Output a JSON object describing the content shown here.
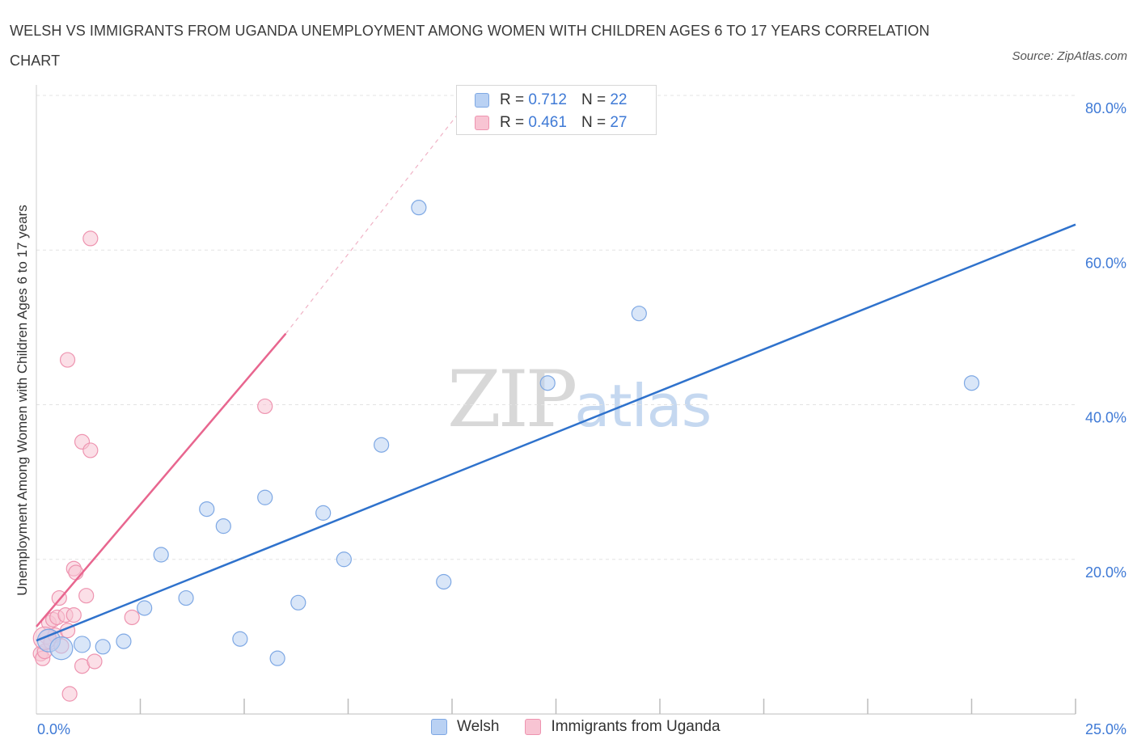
{
  "header": {
    "title": "WELSH VS IMMIGRANTS FROM UGANDA UNEMPLOYMENT AMONG WOMEN WITH CHILDREN AGES 6 TO 17 YEARS CORRELATION CHART",
    "source": "Source: ZipAtlas.com"
  },
  "watermark": {
    "zip": "ZIP",
    "atlas": "atlas"
  },
  "legend": {
    "welsh": {
      "r_label": "R =",
      "r_value": "0.712",
      "n_label": "N =",
      "n_value": "22"
    },
    "uganda": {
      "r_label": "R =",
      "r_value": "0.461",
      "n_label": "N =",
      "n_value": "27"
    }
  },
  "bottom_legend": {
    "welsh": "Welsh",
    "uganda": "Immigrants from Uganda"
  },
  "colors": {
    "welsh_fill": "#b9d1f3",
    "welsh_stroke": "#7ea8e4",
    "welsh_line": "#2f72cc",
    "uganda_fill": "#f8c4d3",
    "uganda_stroke": "#ee94b0",
    "uganda_line": "#e8668f",
    "axis_text": "#3f7ad6",
    "grid": "#e3e3e3"
  },
  "chart_data": {
    "type": "scatter",
    "title": "WELSH VS IMMIGRANTS FROM UGANDA UNEMPLOYMENT AMONG WOMEN WITH CHILDREN AGES 6 TO 17 YEARS CORRELATION CHART",
    "xlabel": "",
    "ylabel": "Unemployment Among Women with Children Ages 6 to 17 years",
    "xlim": [
      0,
      25
    ],
    "ylim": [
      0,
      80
    ],
    "x_tick_labels": [
      "0.0%",
      "25.0%"
    ],
    "y_ticks": [
      20,
      40,
      60,
      80
    ],
    "y_tick_labels": [
      "20.0%",
      "40.0%",
      "60.0%",
      "80.0%"
    ],
    "grid": true,
    "legend_position": "top-center",
    "series": [
      {
        "name": "Welsh",
        "R": 0.712,
        "N": 22,
        "points": [
          {
            "x": 0.3,
            "y": 9.5,
            "size": 14
          },
          {
            "x": 0.6,
            "y": 8.5,
            "size": 14
          },
          {
            "x": 1.1,
            "y": 9.0,
            "size": 10
          },
          {
            "x": 1.6,
            "y": 8.7,
            "size": 9
          },
          {
            "x": 2.1,
            "y": 9.4,
            "size": 9
          },
          {
            "x": 2.6,
            "y": 13.7,
            "size": 9
          },
          {
            "x": 3.0,
            "y": 20.6,
            "size": 9
          },
          {
            "x": 3.6,
            "y": 15.0,
            "size": 9
          },
          {
            "x": 4.1,
            "y": 26.5,
            "size": 9
          },
          {
            "x": 4.5,
            "y": 24.3,
            "size": 9
          },
          {
            "x": 4.9,
            "y": 9.7,
            "size": 9
          },
          {
            "x": 5.5,
            "y": 28.0,
            "size": 9
          },
          {
            "x": 5.8,
            "y": 7.2,
            "size": 9
          },
          {
            "x": 6.3,
            "y": 14.4,
            "size": 9
          },
          {
            "x": 6.9,
            "y": 26.0,
            "size": 9
          },
          {
            "x": 7.4,
            "y": 20.0,
            "size": 9
          },
          {
            "x": 8.3,
            "y": 34.8,
            "size": 9
          },
          {
            "x": 9.2,
            "y": 65.5,
            "size": 9
          },
          {
            "x": 9.8,
            "y": 17.1,
            "size": 9
          },
          {
            "x": 12.3,
            "y": 42.8,
            "size": 9
          },
          {
            "x": 14.5,
            "y": 51.8,
            "size": 9
          },
          {
            "x": 22.5,
            "y": 42.8,
            "size": 9
          }
        ],
        "trend": {
          "x0": 0,
          "y0": 9.5,
          "x1": 25,
          "y1": 63.3
        }
      },
      {
        "name": "Immigrants from Uganda",
        "R": 0.461,
        "N": 27,
        "points": [
          {
            "x": 0.1,
            "y": 7.8,
            "size": 9
          },
          {
            "x": 0.15,
            "y": 7.2,
            "size": 9
          },
          {
            "x": 0.2,
            "y": 8.1,
            "size": 9
          },
          {
            "x": 0.25,
            "y": 10.0,
            "size": 9
          },
          {
            "x": 0.3,
            "y": 11.8,
            "size": 9
          },
          {
            "x": 0.35,
            "y": 9.3,
            "size": 9
          },
          {
            "x": 0.4,
            "y": 12.2,
            "size": 9
          },
          {
            "x": 0.45,
            "y": 10.2,
            "size": 9
          },
          {
            "x": 0.5,
            "y": 12.5,
            "size": 9
          },
          {
            "x": 0.55,
            "y": 15.0,
            "size": 9
          },
          {
            "x": 0.6,
            "y": 8.8,
            "size": 9
          },
          {
            "x": 0.7,
            "y": 12.8,
            "size": 9
          },
          {
            "x": 0.75,
            "y": 10.8,
            "size": 9
          },
          {
            "x": 0.75,
            "y": 45.8,
            "size": 9
          },
          {
            "x": 0.8,
            "y": 2.6,
            "size": 9
          },
          {
            "x": 0.9,
            "y": 12.8,
            "size": 9
          },
          {
            "x": 0.9,
            "y": 18.8,
            "size": 9
          },
          {
            "x": 0.95,
            "y": 18.3,
            "size": 9
          },
          {
            "x": 1.1,
            "y": 35.2,
            "size": 9
          },
          {
            "x": 1.1,
            "y": 6.2,
            "size": 9
          },
          {
            "x": 1.2,
            "y": 15.3,
            "size": 9
          },
          {
            "x": 1.3,
            "y": 34.1,
            "size": 9
          },
          {
            "x": 1.3,
            "y": 61.5,
            "size": 9
          },
          {
            "x": 1.4,
            "y": 6.8,
            "size": 9
          },
          {
            "x": 2.3,
            "y": 12.5,
            "size": 9
          },
          {
            "x": 5.5,
            "y": 39.8,
            "size": 9
          },
          {
            "x": 0.2,
            "y": 9.8,
            "size": 14
          }
        ],
        "trend": {
          "x0": 0,
          "y0": 11.3,
          "x1": 6.0,
          "y1": 49.2
        },
        "trend_dashed": {
          "x0": 6.0,
          "y0": 49.2,
          "x1": 10.2,
          "y1": 78.0
        }
      }
    ]
  }
}
